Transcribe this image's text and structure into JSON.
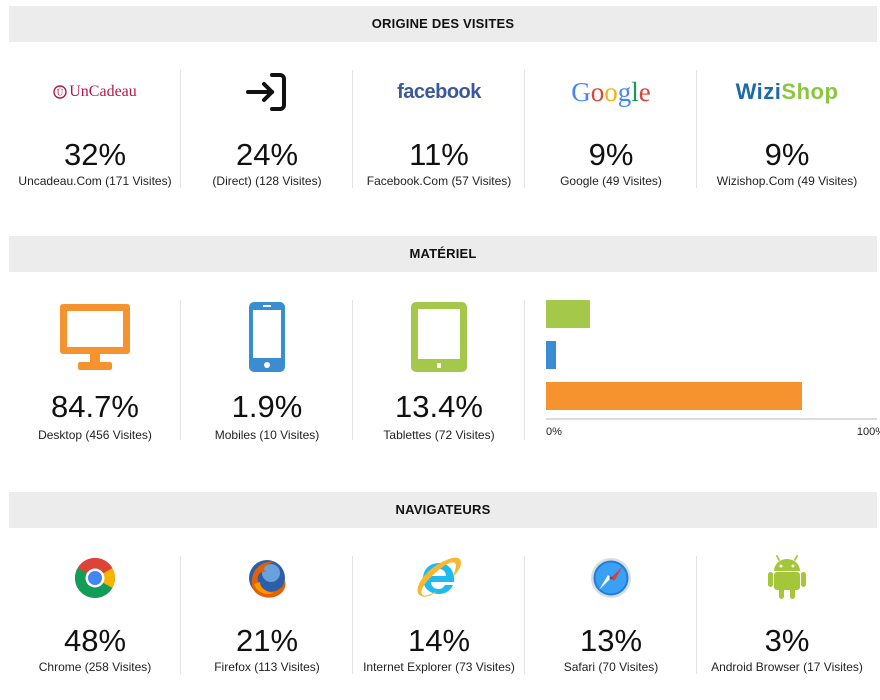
{
  "sections": {
    "origine": {
      "title": "ORIGINE DES VISITES"
    },
    "materiel": {
      "title": "MATÉRIEL"
    },
    "navigateurs": {
      "title": "NAVIGATEURS"
    }
  },
  "origine": [
    {
      "pct": "32%",
      "label": "Uncadeau.Com (171 Visites)",
      "icon": "uncadeau-logo",
      "brand": "UnCadeau"
    },
    {
      "pct": "24%",
      "label": "(Direct) (128 Visites)",
      "icon": "direct-entry-icon"
    },
    {
      "pct": "11%",
      "label": "Facebook.Com (57 Visites)",
      "icon": "facebook-logo",
      "brand": "facebook"
    },
    {
      "pct": "9%",
      "label": "Google (49 Visites)",
      "icon": "google-logo",
      "brand": "Google"
    },
    {
      "pct": "9%",
      "label": "Wizishop.Com (49 Visites)",
      "icon": "wizishop-logo",
      "brand": "WiziShop"
    }
  ],
  "materiel": [
    {
      "pct": "84.7%",
      "label": "Desktop (456 Visites)",
      "icon": "desktop-icon",
      "color": "#f7932f"
    },
    {
      "pct": "1.9%",
      "label": "Mobiles (10 Visites)",
      "icon": "mobile-icon",
      "color": "#3a8dd3"
    },
    {
      "pct": "13.4%",
      "label": "Tablettes (72 Visites)",
      "icon": "tablet-icon",
      "color": "#a3c84a"
    }
  ],
  "chart_data": {
    "type": "bar",
    "orientation": "horizontal",
    "categories": [
      "Tablettes",
      "Mobiles",
      "Desktop"
    ],
    "values": [
      13.4,
      1.9,
      84.7
    ],
    "colors": [
      "#a3c84a",
      "#3a8dd3",
      "#f7932f"
    ],
    "xlim": [
      0,
      100
    ],
    "ticks": [
      "0%",
      "100%"
    ],
    "title": "",
    "xlabel": "",
    "ylabel": ""
  },
  "navigateurs": [
    {
      "pct": "48%",
      "label": "Chrome (258 Visites)",
      "icon": "chrome-icon"
    },
    {
      "pct": "21%",
      "label": "Firefox (113 Visites)",
      "icon": "firefox-icon"
    },
    {
      "pct": "14%",
      "label": "Internet Explorer (73 Visites)",
      "icon": "internet-explorer-icon"
    },
    {
      "pct": "13%",
      "label": "Safari (70 Visites)",
      "icon": "safari-icon"
    },
    {
      "pct": "3%",
      "label": "Android Browser (17 Visites)",
      "icon": "android-icon"
    }
  ]
}
